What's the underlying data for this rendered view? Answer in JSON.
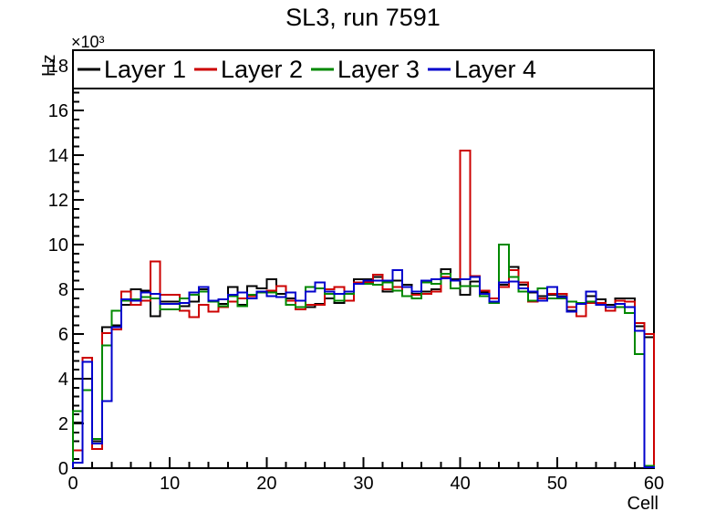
{
  "title": "SL3, run 7591",
  "chart_data": {
    "type": "line",
    "subtype": "step-histogram",
    "title": "SL3, run 7591",
    "xlabel": "Cell",
    "ylabel": "Hz",
    "y_axis_multiplier_label": "×10³",
    "xlim": [
      0,
      60
    ],
    "ylim": [
      0,
      18700
    ],
    "x_major_tick_step": 10,
    "x_minor_tick_step": 2,
    "y_major_tick_step": 2000,
    "y_minor_tick_step": 400,
    "y_max_labeled_tick": 18000,
    "x_tick_labels": [
      "0",
      "10",
      "20",
      "30",
      "40",
      "50",
      "60"
    ],
    "y_tick_labels": [
      "0",
      "2",
      "4",
      "6",
      "8",
      "10",
      "12",
      "14",
      "16",
      "18"
    ],
    "grid": false,
    "legend_position": "top-band-inside-frame",
    "bins": {
      "start": 0,
      "end": 60,
      "count": 60
    },
    "series": [
      {
        "name": "Layer 1",
        "color": "#000000",
        "values": [
          2050,
          4000,
          1200,
          6300,
          6400,
          7300,
          8000,
          7950,
          6800,
          7450,
          7450,
          7250,
          7450,
          8000,
          7500,
          7350,
          8100,
          7300,
          8150,
          8050,
          8450,
          7800,
          7600,
          7100,
          7200,
          7350,
          7600,
          7400,
          7900,
          8450,
          8450,
          8550,
          7900,
          8400,
          8200,
          7800,
          7900,
          8000,
          8900,
          8450,
          7750,
          8350,
          7850,
          7450,
          8200,
          9000,
          8200,
          7850,
          7700,
          7750,
          7700,
          7050,
          6800,
          7700,
          7550,
          7300,
          7600,
          7600,
          6350,
          5850
        ]
      },
      {
        "name": "Layer 2",
        "color": "#cc0000",
        "values": [
          800,
          4950,
          850,
          6050,
          6200,
          7900,
          7300,
          7500,
          9250,
          7750,
          7750,
          7050,
          6750,
          7300,
          7000,
          7200,
          7450,
          7600,
          7700,
          7900,
          7950,
          8150,
          7500,
          7100,
          7300,
          7300,
          8000,
          8100,
          7500,
          8300,
          8300,
          8650,
          8000,
          8100,
          7700,
          7750,
          7800,
          7900,
          8550,
          8400,
          14200,
          8600,
          7950,
          7600,
          8100,
          8850,
          8300,
          7450,
          7600,
          7800,
          7800,
          7200,
          6800,
          7400,
          7400,
          7050,
          7500,
          7450,
          6500,
          6000
        ]
      },
      {
        "name": "Layer 3",
        "color": "#008800",
        "values": [
          2550,
          3500,
          1300,
          5500,
          7050,
          7500,
          7550,
          7650,
          7600,
          7100,
          7100,
          7600,
          7750,
          7900,
          7450,
          7250,
          7700,
          7250,
          7750,
          7850,
          7850,
          7650,
          7300,
          7200,
          8100,
          8050,
          7800,
          7500,
          7800,
          8250,
          8250,
          8200,
          8300,
          7950,
          7700,
          7600,
          8300,
          8250,
          8700,
          8050,
          8150,
          8150,
          7700,
          7400,
          10000,
          8550,
          7900,
          7500,
          8050,
          7600,
          7600,
          7450,
          7400,
          7450,
          7300,
          7200,
          7200,
          6950,
          5100,
          100
        ]
      },
      {
        "name": "Layer 4",
        "color": "#0000cc",
        "values": [
          250,
          4750,
          1100,
          3000,
          6300,
          7550,
          7500,
          7850,
          7800,
          7350,
          7350,
          7400,
          7850,
          8100,
          7500,
          7550,
          7750,
          7850,
          7600,
          7900,
          7700,
          7650,
          7850,
          7500,
          7900,
          8300,
          7900,
          7800,
          7900,
          8250,
          8400,
          8400,
          8400,
          8850,
          8100,
          7900,
          8400,
          8450,
          8500,
          8400,
          8450,
          8550,
          7800,
          7450,
          8300,
          8350,
          8050,
          7900,
          7500,
          8100,
          7650,
          7000,
          7350,
          7900,
          7300,
          7200,
          7350,
          7200,
          6150,
          50
        ]
      }
    ]
  }
}
